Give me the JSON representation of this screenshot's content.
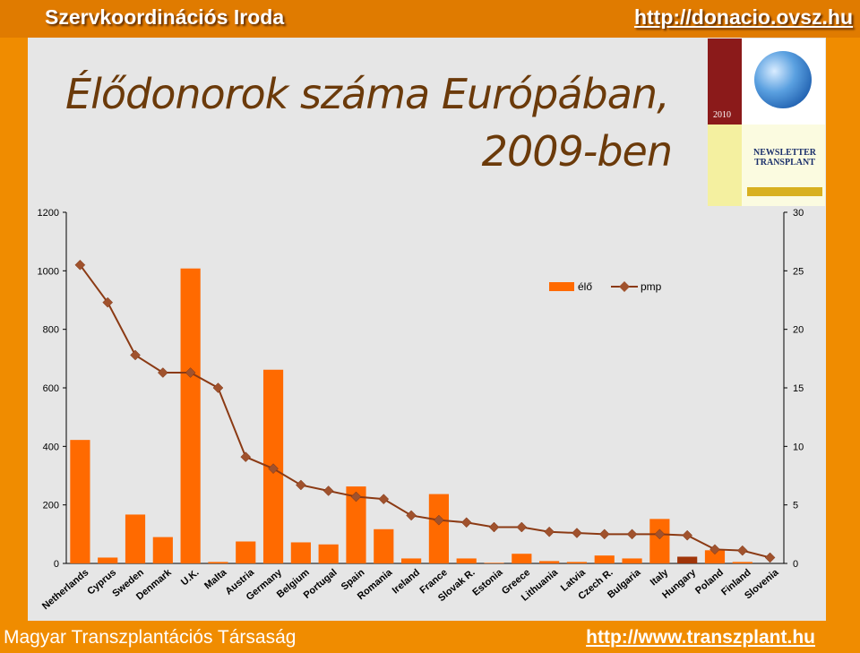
{
  "header": {
    "org_name": "Szervkoordinációs Iroda",
    "org_url": "http://donacio.ovsz.hu"
  },
  "slide": {
    "title_line1": "Élődonorok száma Európában,",
    "title_line2": "2009-ben"
  },
  "newsletter": {
    "year": "2010",
    "title": "NEWSLETTER TRANSPLANT"
  },
  "footer": {
    "society": "Magyar Transzplantációs Társaság",
    "url": "http://www.transzplant.hu"
  },
  "colors": {
    "bar": "#ff6a00",
    "bar_highlight": "#a0350a",
    "line": "#8b3a14",
    "marker": "#a0522d"
  },
  "chart_data": {
    "type": "bar",
    "categories": [
      "Netherlands",
      "Cyprus",
      "Sweden",
      "Denmark",
      "U.K.",
      "Malta",
      "Austria",
      "Germany",
      "Belgium",
      "Portugal",
      "Spain",
      "Romania",
      "Ireland",
      "France",
      "Slovak R.",
      "Estonia",
      "Greece",
      "Lithuania",
      "Latvia",
      "Czech R.",
      "Bulgaria",
      "Italy",
      "Hungary",
      "Poland",
      "Finland",
      "Slovenia"
    ],
    "highlight": "Hungary",
    "series": [
      {
        "name": "élő",
        "axis": "left",
        "values": [
          422,
          20,
          167,
          90,
          1008,
          5,
          75,
          662,
          72,
          65,
          263,
          117,
          17,
          237,
          17,
          2,
          33,
          8,
          5,
          27,
          17,
          152,
          23,
          45,
          5,
          0
        ]
      },
      {
        "name": "pmp",
        "axis": "right",
        "values": [
          25.5,
          22.3,
          17.8,
          16.3,
          16.3,
          15,
          9.1,
          8.1,
          6.7,
          6.2,
          5.7,
          5.5,
          4.1,
          3.7,
          3.5,
          3.1,
          3.1,
          2.7,
          2.6,
          2.5,
          2.5,
          2.5,
          2.4,
          1.2,
          1.1,
          0.5
        ]
      }
    ],
    "y_left": {
      "ticks": [
        "0",
        "200",
        "400",
        "600",
        "800",
        "1000",
        "1200"
      ],
      "ylim": [
        0,
        1200
      ]
    },
    "y_right": {
      "ticks": [
        "0",
        "5",
        "10",
        "15",
        "20",
        "25",
        "30"
      ],
      "ylim": [
        0,
        30
      ]
    },
    "legend": {
      "position": "top-right",
      "bar_label": "élő",
      "line_label": "pmp"
    },
    "grid": false
  }
}
